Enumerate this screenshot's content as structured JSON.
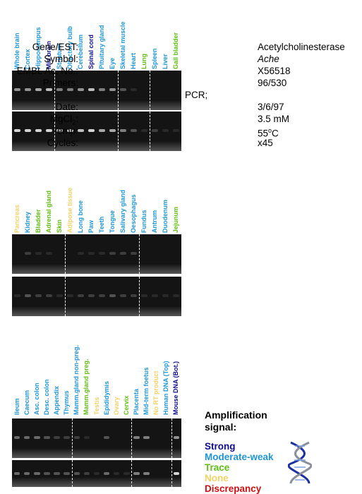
{
  "info": {
    "gene_key": "Gene/EST:",
    "gene_val": "Acetylcholinesterase",
    "symbol_key": "Symbol:",
    "symbol_val": "Ache",
    "embl_key": "EMBL Ac. No.:",
    "embl_val": "X56518",
    "primers_key": "Primers:",
    "primers_val": "96/530",
    "pcr_label": "PCR;",
    "date_key": "Date:",
    "date_val": "3/6/97",
    "mgcl_key_base": "MgCl",
    "mgcl_key_sub": "2",
    "mgcl_key_end": ":",
    "mgcl_val": "3.5 mM",
    "temp_key": "Temp:",
    "temp_val_num": "55",
    "temp_val_sup": "o",
    "temp_val_unit": "C",
    "cycles_key": "Cycles:",
    "cycles_val": "x45"
  },
  "colors": {
    "strong": "#0d0d8c",
    "moderate": "#1e96d6",
    "trace": "#5fbf12",
    "none": "#f2d266",
    "discrepancy": "#cc1111"
  },
  "legend": {
    "title": "Amplification signal:",
    "items": [
      {
        "label": "Strong",
        "level": "strong"
      },
      {
        "label": "Moderate-weak",
        "level": "moderate"
      },
      {
        "label": "Trace",
        "level": "trace"
      },
      {
        "label": "None",
        "level": "none"
      },
      {
        "label": "Discrepancy",
        "level": "discrepancy"
      }
    ],
    "icon": "dna-helix-icon"
  },
  "panels": [
    {
      "lanes": [
        {
          "label": "Whole brain",
          "level": "moderate",
          "signal": [
            0.6,
            0.9
          ]
        },
        {
          "label": "Cortex",
          "level": "moderate",
          "signal": [
            0.6,
            0.9
          ]
        },
        {
          "label": "Hippocampus",
          "level": "moderate",
          "signal": [
            0.7,
            0.9
          ]
        },
        {
          "label": "Mid brain",
          "level": "strong",
          "signal": [
            0.8,
            0.9
          ]
        },
        {
          "label": "Striatum",
          "level": "moderate",
          "signal": [
            0.5,
            0.8
          ]
        },
        {
          "label": "Olfactory bulb",
          "level": "moderate",
          "signal": [
            0.5,
            0.8
          ]
        },
        {
          "label": "Cerebellum",
          "level": "moderate",
          "signal": [
            0.6,
            0.8
          ]
        },
        {
          "label": "Spinal cord",
          "level": "strong",
          "signal": [
            0.8,
            0.9
          ]
        },
        {
          "label": "Pituitary gland",
          "level": "moderate",
          "signal": [
            0.5,
            0.7
          ]
        },
        {
          "label": "Eye",
          "level": "moderate",
          "signal": [
            0.6,
            0.7
          ]
        },
        {
          "label": "Skeletal muscle",
          "level": "moderate",
          "signal": [
            0.3,
            0.5
          ]
        },
        {
          "label": "Heart",
          "level": "moderate",
          "signal": [
            0.1,
            0.3
          ]
        },
        {
          "label": "Lung",
          "level": "trace",
          "signal": [
            0,
            0.1
          ]
        },
        {
          "label": "Spleen",
          "level": "moderate",
          "signal": [
            0,
            0.2
          ]
        },
        {
          "label": "Liver",
          "level": "moderate",
          "signal": [
            0,
            0.1
          ]
        },
        {
          "label": "Gall bladder",
          "level": "trace",
          "signal": [
            0,
            0.1
          ]
        }
      ],
      "dividers_after": [
        3,
        9,
        12
      ]
    },
    {
      "lanes": [
        {
          "label": "Pancreas",
          "level": "none",
          "signal": [
            0,
            0.1
          ]
        },
        {
          "label": "Kidney",
          "level": "moderate",
          "signal": [
            0.2,
            0.3
          ]
        },
        {
          "label": "Bladder",
          "level": "trace",
          "signal": [
            0.1,
            0.2
          ]
        },
        {
          "label": "Adrenal gland",
          "level": "trace",
          "signal": [
            0.1,
            0.2
          ]
        },
        {
          "label": "Skin",
          "level": "trace",
          "signal": [
            0,
            0.1
          ]
        },
        {
          "label": "Adipose tissue",
          "level": "none",
          "signal": [
            0,
            0.1
          ]
        },
        {
          "label": "Long bone",
          "level": "moderate",
          "signal": [
            0.1,
            0.2
          ]
        },
        {
          "label": "Paw",
          "level": "moderate",
          "signal": [
            0.1,
            0.2
          ]
        },
        {
          "label": "Teeth",
          "level": "moderate",
          "signal": [
            0.1,
            0.2
          ]
        },
        {
          "label": "Tongue",
          "level": "moderate",
          "signal": [
            0.2,
            0.3
          ]
        },
        {
          "label": "Salivary gland",
          "level": "moderate",
          "signal": [
            0.2,
            0.2
          ]
        },
        {
          "label": "Oesophagus",
          "level": "moderate",
          "signal": [
            0.2,
            0.2
          ]
        },
        {
          "label": "Fundus",
          "level": "moderate",
          "signal": [
            0,
            0.1
          ]
        },
        {
          "label": "Antrum",
          "level": "moderate",
          "signal": [
            0,
            0.1
          ]
        },
        {
          "label": "Duodenum",
          "level": "moderate",
          "signal": [
            0,
            0.1
          ]
        },
        {
          "label": "Jejunum",
          "level": "trace",
          "signal": [
            0,
            0.1
          ]
        }
      ],
      "dividers_after": [
        4,
        11
      ]
    },
    {
      "lanes": [
        {
          "label": "Ileum",
          "level": "moderate",
          "signal": [
            0.4,
            0.4
          ]
        },
        {
          "label": "Caecum",
          "level": "moderate",
          "signal": [
            0.4,
            0.4
          ]
        },
        {
          "label": "Asc. colon",
          "level": "moderate",
          "signal": [
            0.4,
            0.4
          ]
        },
        {
          "label": "Desc. colon",
          "level": "moderate",
          "signal": [
            0.3,
            0.3
          ]
        },
        {
          "label": "Appendix",
          "level": "moderate",
          "signal": [
            0.2,
            0.3
          ]
        },
        {
          "label": "Thymus",
          "level": "moderate",
          "signal": [
            0.2,
            0.3
          ]
        },
        {
          "label": "Mamm.gland non-preg.",
          "level": "moderate",
          "signal": [
            0.2,
            0.3
          ]
        },
        {
          "label": "Mamm.gland preg.",
          "level": "trace",
          "signal": [
            0.1,
            0.2
          ]
        },
        {
          "label": "Testis",
          "level": "none",
          "signal": [
            0,
            0.1
          ]
        },
        {
          "label": "Epididymis",
          "level": "moderate",
          "signal": [
            0.3,
            0.4
          ]
        },
        {
          "label": "Ovary",
          "level": "none",
          "signal": [
            0,
            0.1
          ]
        },
        {
          "label": "Cervix",
          "level": "trace",
          "signal": [
            0,
            0.1
          ]
        },
        {
          "label": "Placenta",
          "level": "moderate",
          "signal": [
            0.5,
            0.5
          ]
        },
        {
          "label": "Mid-term foetus",
          "level": "moderate",
          "signal": [
            0.5,
            0.5
          ]
        },
        {
          "label": "No RT product",
          "level": "none",
          "signal": [
            0,
            0
          ]
        },
        {
          "label": "Human DNA (Top)",
          "level": "moderate",
          "signal": [
            0,
            0
          ]
        },
        {
          "label": "Mouse DNA (Bot.)",
          "level": "strong",
          "signal": [
            0.6,
            0.9
          ]
        }
      ],
      "dividers_after": [
        5,
        11,
        15
      ]
    }
  ]
}
